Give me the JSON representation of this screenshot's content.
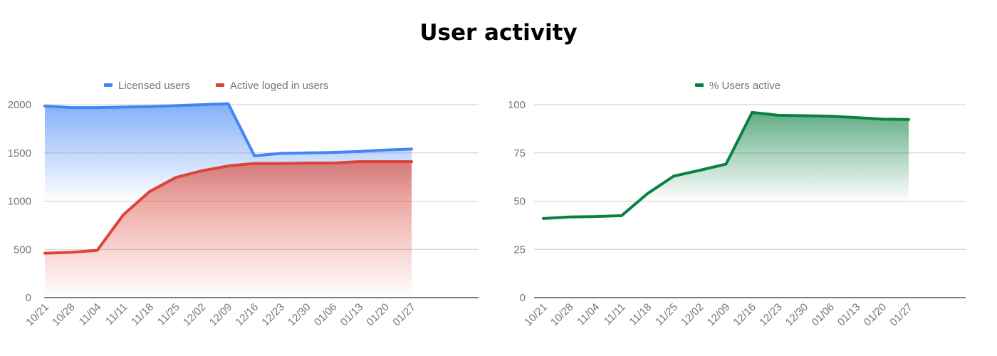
{
  "title": "User activity",
  "chart_data": [
    {
      "type": "area",
      "x": [
        "10/21",
        "10/28",
        "11/04",
        "11/11",
        "11/18",
        "11/25",
        "12/02",
        "12/09",
        "12/16",
        "12/23",
        "12/30",
        "01/06",
        "01/13",
        "01/20",
        "01/27"
      ],
      "series": [
        {
          "name": "Licensed users",
          "color": "#4285f4",
          "values": [
            1985,
            1970,
            1970,
            1975,
            1980,
            1990,
            2000,
            2010,
            1470,
            1495,
            1500,
            1505,
            1515,
            1530,
            1540
          ],
          "fill_to": 1000
        },
        {
          "name": "Active loged in users",
          "color": "#db4437",
          "values": [
            460,
            470,
            490,
            860,
            1100,
            1245,
            1315,
            1365,
            1390,
            1390,
            1395,
            1395,
            1410,
            1410,
            1410
          ],
          "fill_to": 0
        }
      ],
      "ylim": [
        0,
        2000
      ],
      "yticks": [
        0,
        500,
        1000,
        1500,
        2000
      ],
      "xlabel": "",
      "ylabel": "",
      "grid": true,
      "legend": "top"
    },
    {
      "type": "area",
      "x": [
        "10/21",
        "10/28",
        "11/04",
        "11/11",
        "11/18",
        "11/25",
        "12/02",
        "12/09",
        "12/16",
        "12/23",
        "12/30",
        "01/06",
        "01/13",
        "01/20",
        "01/27"
      ],
      "series": [
        {
          "name": "% Users active",
          "color": "#0b8043",
          "values": [
            41,
            41.8,
            42,
            42.5,
            54,
            63,
            66,
            69.2,
            96,
            94.5,
            94.3,
            94,
            93.3,
            92.5,
            92.3
          ],
          "fill_to": 50
        }
      ],
      "ylim": [
        0,
        100
      ],
      "yticks": [
        0,
        25,
        50,
        75,
        100
      ],
      "xlabel": "",
      "ylabel": "",
      "grid": true,
      "legend": "top"
    }
  ]
}
